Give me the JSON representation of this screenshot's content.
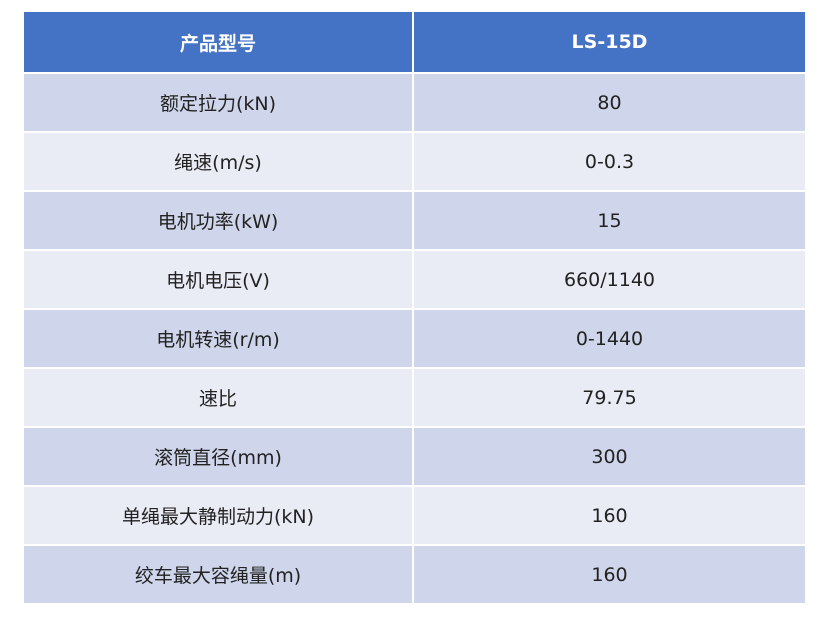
{
  "table": {
    "header": {
      "param_label": "产品型号",
      "model": "LS-15D"
    },
    "rows": [
      {
        "name": "额定拉力(kN)",
        "value": "80"
      },
      {
        "name": "绳速(m/s)",
        "value": "0-0.3"
      },
      {
        "name": "电机功率(kW)",
        "value": "15"
      },
      {
        "name": "电机电压(V)",
        "value": "660/1140"
      },
      {
        "name": "电机转速(r/m)",
        "value": "0-1440"
      },
      {
        "name": "速比",
        "value": "79.75"
      },
      {
        "name": "滚筒直径(mm)",
        "value": "300"
      },
      {
        "name": "单绳最大静制动力(kN)",
        "value": "160"
      },
      {
        "name": "绞车最大容绳量(m)",
        "value": "160"
      }
    ],
    "colors": {
      "header_bg": "#4472c4",
      "row_odd_bg": "#cfd5ea",
      "row_even_bg": "#e9ebf5"
    }
  }
}
